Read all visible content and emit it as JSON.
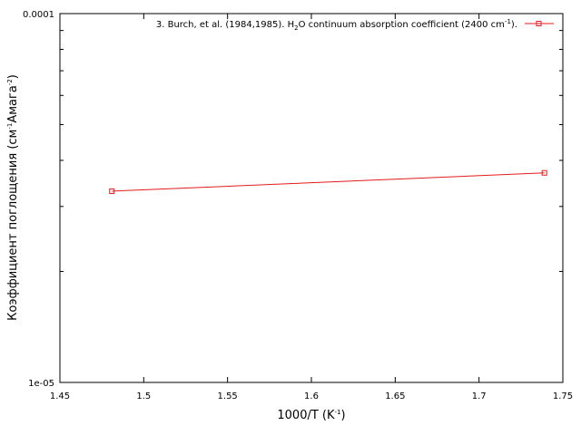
{
  "chart_data": {
    "type": "line",
    "xlabel": "1000/T (K",
    "xlabel_sup": "-1",
    "xlabel_close": ")",
    "ylabel_parts": [
      "Коэффициент поглощения (см",
      "-1",
      "Амага",
      "-2",
      ")"
    ],
    "y_scale": "log",
    "xlim": [
      1.45,
      1.75
    ],
    "ylim": [
      1e-05,
      0.0001
    ],
    "x_ticks": [
      1.45,
      1.5,
      1.55,
      1.6,
      1.65,
      1.7,
      1.75
    ],
    "x_tick_labels": [
      "1.45",
      "1.5",
      "1.55",
      "1.6",
      "1.65",
      "1.7",
      "1.75"
    ],
    "y_tick_labels": [
      {
        "value": 0.0001,
        "label": "0.0001"
      },
      {
        "value": 1e-05,
        "label": "1e-05"
      }
    ],
    "y_minor_ticks": [
      2e-05,
      3e-05,
      4e-05,
      5e-05,
      6e-05,
      7e-05,
      8e-05,
      9e-05
    ],
    "grid": false,
    "legend_position": "top-right",
    "series": [
      {
        "name_parts": [
          "3. Burch, et al. (1984,1985). H",
          "2",
          "O continuum absorption coefficient (2400 cm",
          "-1",
          ")."
        ],
        "color": "#e41a1c",
        "marker": "square",
        "x": [
          1.481,
          1.739
        ],
        "y": [
          3.3e-05,
          3.7e-05
        ]
      }
    ]
  }
}
